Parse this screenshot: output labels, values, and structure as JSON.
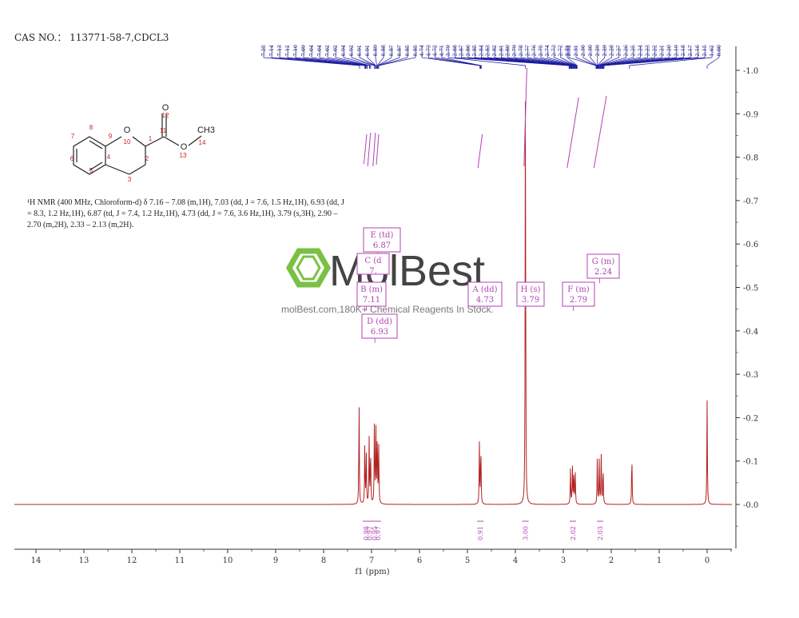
{
  "header": {
    "cas_text": "CAS NO.： 113771-58-7,CDCL3"
  },
  "nmr_description": "¹H NMR (400 MHz, Chloroform-d) δ 7.16 – 7.08 (m,1H), 7.03 (dd, J = 7.6, 1.5 Hz,1H), 6.93 (dd, J = 8.3, 1.2 Hz,1H), 6.87 (td, J = 7.4, 1.2 Hz,1H), 4.73 (dd, J = 7.6, 3.6 Hz,1H), 3.79 (s,3H), 2.90 – 2.70 (m,2H), 2.33 – 2.13 (m,2H).",
  "structure": {
    "atom_labels": [
      "O",
      "O",
      "O",
      "CH3"
    ],
    "numbers": [
      "1",
      "2",
      "3",
      "4",
      "5",
      "6",
      "7",
      "8",
      "9",
      "10",
      "11",
      "12",
      "13",
      "14"
    ]
  },
  "watermark": {
    "logo_text": "MolBest",
    "tagline": "molBest.com,180K+ Chemical Reagents In Stock."
  },
  "colors": {
    "spectrum": "#b22222",
    "annotation": "#b043b0",
    "shift_lines": "#1a1aa0",
    "axis": "#333333"
  },
  "chart_data": {
    "type": "line",
    "xlabel": "f1 (ppm)",
    "xlim": [
      14.5,
      -0.5
    ],
    "ylim": [
      -0.05,
      1.05
    ],
    "x_axis_reversed": true,
    "x_ticks": [
      14,
      13,
      12,
      11,
      10,
      9,
      8,
      7,
      6,
      5,
      4,
      3,
      2,
      1,
      0
    ],
    "x_tick_labels": [
      "14",
      "13",
      "12",
      "11",
      "10",
      "9",
      "8",
      "7",
      "6",
      "5",
      "4",
      "3",
      "2",
      "1",
      "0"
    ],
    "y_ticks": [
      0.0,
      0.1,
      0.2,
      0.3,
      0.4,
      0.5,
      0.6,
      0.7,
      0.8,
      0.9,
      1.0
    ],
    "y_tick_labels": [
      "0.0",
      "0.1",
      "0.2",
      "0.3",
      "0.4",
      "0.5",
      "0.6",
      "0.7",
      "0.8",
      "0.9",
      "1.0"
    ],
    "peaks": [
      {
        "ppm": 7.26,
        "height": 0.24
      },
      {
        "ppm": 7.14,
        "height": 0.14
      },
      {
        "ppm": 7.11,
        "height": 0.12
      },
      {
        "ppm": 7.05,
        "height": 0.15
      },
      {
        "ppm": 7.02,
        "height": 0.13
      },
      {
        "ppm": 6.94,
        "height": 0.19
      },
      {
        "ppm": 6.91,
        "height": 0.18
      },
      {
        "ppm": 6.88,
        "height": 0.17
      },
      {
        "ppm": 6.85,
        "height": 0.13
      },
      {
        "ppm": 4.75,
        "height": 0.14
      },
      {
        "ppm": 4.72,
        "height": 0.14
      },
      {
        "ppm": 3.79,
        "height": 1.0
      },
      {
        "ppm": 2.85,
        "height": 0.08
      },
      {
        "ppm": 2.81,
        "height": 0.09
      },
      {
        "ppm": 2.78,
        "height": 0.08
      },
      {
        "ppm": 2.75,
        "height": 0.07
      },
      {
        "ppm": 2.29,
        "height": 0.11
      },
      {
        "ppm": 2.25,
        "height": 0.1
      },
      {
        "ppm": 2.21,
        "height": 0.12
      },
      {
        "ppm": 2.17,
        "height": 0.09
      },
      {
        "ppm": 1.57,
        "height": 0.12
      },
      {
        "ppm": 0.0,
        "height": 0.24
      }
    ],
    "multiplet_labels": [
      {
        "letter": "E (td)",
        "value": "6.87",
        "ppm": 6.87
      },
      {
        "letter": "C (d",
        "value": "7.",
        "ppm": 7.03
      },
      {
        "letter": "B (m)",
        "value": "7.11",
        "ppm": 7.11
      },
      {
        "letter": "D (dd)",
        "value": "6.93",
        "ppm": 6.93
      },
      {
        "letter": "A (dd)",
        "value": "4.73",
        "ppm": 4.73
      },
      {
        "letter": "H (s)",
        "value": "3.79",
        "ppm": 3.79
      },
      {
        "letter": "F (m)",
        "value": "2.79",
        "ppm": 2.79
      },
      {
        "letter": "G (m)",
        "value": "2.24",
        "ppm": 2.24
      }
    ],
    "shift_labels": [
      "7.25",
      "7.14",
      "7.13",
      "7.12",
      "7.10",
      "7.09",
      "7.04",
      "7.04",
      "7.02",
      "7.02",
      "6.94",
      "6.92",
      "6.91",
      "6.91",
      "6.89",
      "6.88",
      "6.87",
      "6.87",
      "6.85",
      "6.85",
      "4.74",
      "4.73",
      "4.72",
      "4.71",
      "3.79",
      "2.88",
      "2.87",
      "2.86",
      "2.85",
      "2.84",
      "2.83",
      "2.82",
      "2.81",
      "2.80",
      "2.79",
      "2.78",
      "2.77",
      "2.76",
      "2.75",
      "2.74",
      "2.73",
      "2.72",
      "2.71",
      "2.32",
      "2.31",
      "2.30",
      "2.30",
      "2.29",
      "2.29",
      "2.28",
      "2.27",
      "2.26",
      "2.25",
      "2.24",
      "2.23",
      "2.22",
      "2.21",
      "2.20",
      "2.19",
      "2.18",
      "2.17",
      "2.16",
      "2.15",
      "1.62",
      "0.00"
    ],
    "integrations": [
      {
        "ppm": 7.12,
        "value": "0.98"
      },
      {
        "ppm": 7.04,
        "value": "0.97"
      },
      {
        "ppm": 6.94,
        "value": "0.95"
      },
      {
        "ppm": 6.87,
        "value": "0.97"
      },
      {
        "ppm": 4.73,
        "value": "0.91"
      },
      {
        "ppm": 3.79,
        "value": "3.00"
      },
      {
        "ppm": 2.8,
        "value": "2.02"
      },
      {
        "ppm": 2.23,
        "value": "2.03"
      }
    ]
  }
}
